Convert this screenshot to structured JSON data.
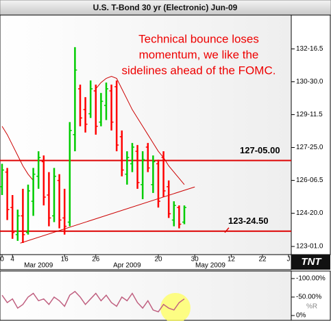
{
  "chart_data": {
    "type": "ohlc",
    "title": "U.S. T-Bond 30 yr (Electronic) Jun-09",
    "annotation": [
      "Technical bounce loses",
      "momentum, we like the",
      "sidelines ahead of the FOMC."
    ],
    "logo": "TNT",
    "categories": [
      "0",
      null,
      "4",
      null,
      null,
      null,
      null,
      null,
      null,
      null,
      null,
      null,
      "16",
      null,
      null,
      null,
      null,
      null,
      "26",
      null,
      null,
      null,
      null,
      null,
      null,
      null,
      null,
      null,
      null,
      null,
      "20",
      null,
      null,
      null,
      null,
      null,
      null,
      "30",
      null,
      null,
      null,
      null,
      null,
      null,
      "12",
      null,
      null,
      null,
      null,
      null,
      "22",
      null,
      null,
      null,
      null,
      "J"
    ],
    "month_labels": [
      null,
      null,
      null,
      null,
      null,
      null,
      null,
      "Mar 2009",
      null,
      null,
      null,
      null,
      null,
      null,
      null,
      null,
      null,
      null,
      null,
      null,
      null,
      null,
      null,
      null,
      "Apr 2009",
      null,
      null,
      null,
      null,
      null,
      null,
      null,
      null,
      null,
      null,
      null,
      null,
      null,
      null,
      null,
      "May 2009",
      null,
      null,
      null,
      null,
      null,
      null,
      null,
      null,
      null,
      null,
      null,
      null,
      null,
      null,
      null
    ],
    "open": [
      125.9,
      126.6,
      124.9,
      123.6,
      124.5,
      123.7,
      125.2,
      126.4,
      127.1,
      125.5,
      124.5,
      126.2,
      124.4,
      124.2,
      128.4,
      130.6,
      129.6,
      129.4,
      130.5,
      129.0,
      129.8,
      130.5,
      130.7,
      128.3,
      126.5,
      127.0,
      127.6,
      126.0,
      127.8,
      126.0,
      127.0,
      127.3,
      125.9,
      124.3,
      124.9,
      124.2,
      null,
      null,
      null,
      null,
      null,
      null,
      null,
      null,
      null,
      null,
      null,
      null,
      null,
      null,
      null,
      null,
      null,
      null,
      null,
      null
    ],
    "high": [
      127.0,
      126.8,
      125.5,
      124.8,
      125.8,
      126.0,
      126.8,
      127.6,
      127.4,
      126.6,
      126.8,
      126.5,
      125.8,
      129.0,
      132.6,
      130.8,
      130.2,
      131.0,
      130.8,
      130.4,
      130.9,
      130.8,
      131.0,
      128.6,
      127.6,
      128.0,
      127.9,
      127.6,
      128.0,
      127.4,
      127.2,
      127.6,
      126.2,
      125.2,
      125.0,
      125.0,
      null,
      null,
      null,
      null,
      null,
      null,
      null,
      null,
      null,
      null,
      null,
      null,
      null,
      null,
      null,
      null,
      null,
      null,
      null,
      null
    ],
    "low": [
      125.5,
      124.3,
      123.4,
      123.3,
      123.2,
      123.6,
      124.5,
      125.8,
      125.0,
      124.0,
      124.2,
      123.9,
      123.6,
      124.0,
      127.6,
      128.8,
      128.5,
      129.2,
      128.4,
      128.8,
      129.1,
      128.6,
      127.6,
      126.4,
      126.0,
      126.6,
      125.8,
      125.3,
      126.6,
      125.6,
      124.9,
      125.4,
      124.4,
      124.0,
      123.9,
      124.1,
      null,
      null,
      null,
      null,
      null,
      null,
      null,
      null,
      null,
      null,
      null,
      null,
      null,
      null,
      null,
      null,
      null,
      null,
      null,
      null
    ],
    "close": [
      126.7,
      124.8,
      123.7,
      124.5,
      123.6,
      125.7,
      126.5,
      127.3,
      125.4,
      124.4,
      126.4,
      124.3,
      124.0,
      128.6,
      131.5,
      129.2,
      128.9,
      130.6,
      128.8,
      130.0,
      130.6,
      129.0,
      127.9,
      126.7,
      127.3,
      127.8,
      126.1,
      127.2,
      126.8,
      127.1,
      125.2,
      125.7,
      124.6,
      125.0,
      124.1,
      124.9,
      null,
      null,
      null,
      null,
      null,
      null,
      null,
      null,
      null,
      null,
      null,
      null,
      null,
      null,
      null,
      null,
      null,
      null,
      null,
      null
    ],
    "up_color": "#00cc00",
    "down_color": "#ff0000",
    "moving_average": {
      "color": "#cc0000",
      "values": [
        128.8,
        128.4,
        127.9,
        127.4,
        126.9,
        126.5,
        126.2,
        null,
        null,
        null,
        null,
        null,
        null,
        null,
        null,
        null,
        null,
        null,
        130.6,
        130.9,
        131.1,
        131.2,
        131.1,
        130.6,
        130.1,
        129.6,
        129.2,
        128.8,
        128.4,
        128.0,
        127.6,
        127.3,
        126.9,
        126.6,
        126.3,
        126.0,
        null,
        null,
        null,
        null,
        null,
        null,
        null,
        null,
        null,
        null,
        null,
        null,
        null,
        null,
        null,
        null,
        null,
        null,
        null,
        null
      ]
    },
    "trendline": {
      "color": "#cc0000",
      "x": [
        3.5,
        37
      ],
      "y": [
        123.19,
        125.89
      ]
    },
    "levels": [
      {
        "value": 127.15625,
        "label": "127-05.00"
      },
      {
        "value": 123.765625,
        "label": "123-24.50"
      }
    ],
    "level_color": "#dd0000",
    "ylim": [
      122.64,
      134.14
    ],
    "yticks": [
      {
        "value": 132.515625,
        "label": "132-16.5"
      },
      {
        "value": 130.9375,
        "label": "130-30.0"
      },
      {
        "value": 129.359375,
        "label": "129-11.5"
      },
      {
        "value": 127.78125,
        "label": "127-25.0"
      },
      {
        "value": 126.203125,
        "label": "126-06.5"
      },
      {
        "value": 124.625,
        "label": "124-20.0"
      },
      {
        "value": 123.03125,
        "label": "123-01.0"
      }
    ],
    "oscillator": {
      "name": "%R",
      "color": "#c06080",
      "values": [
        -55,
        -35,
        -45,
        -20,
        -30,
        -50,
        -60,
        -40,
        -45,
        -30,
        -50,
        -40,
        -25,
        -55,
        -65,
        -50,
        -30,
        -45,
        -60,
        -40,
        -55,
        -35,
        -25,
        -50,
        -40,
        -60,
        -35,
        -20,
        -40,
        -15,
        -10,
        -30,
        -20,
        -15,
        -35,
        -45,
        null,
        null,
        null,
        null,
        null,
        null,
        null,
        null,
        null,
        null,
        null,
        null,
        null,
        null,
        null,
        null,
        null,
        null,
        null,
        null
      ],
      "ylim": [
        0,
        -100
      ],
      "yticks": [
        {
          "value": -100,
          "label": "-100.00%"
        },
        {
          "value": -50,
          "label": "-50.00%"
        },
        {
          "value": 0,
          "label": "0%"
        }
      ]
    }
  }
}
